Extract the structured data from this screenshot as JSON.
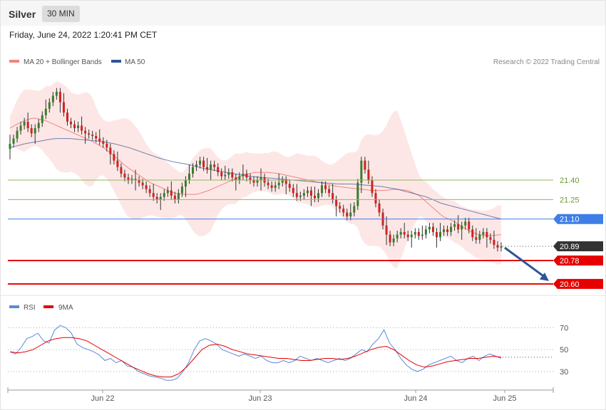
{
  "header": {
    "instrument": "Silver",
    "timeframe": "30 MIN",
    "datetime": "Friday, June 24, 2022 1:20:41 PM CET"
  },
  "price_panel": {
    "legend": [
      {
        "label": "MA 20 + Bollinger Bands",
        "color": "#f0857f"
      },
      {
        "label": "MA 50",
        "color": "#2f5597"
      }
    ],
    "credit": "Research © 2022 Trading Central",
    "levels": [
      {
        "value": "21.40",
        "style": "green-line",
        "color": "#8fba5a"
      },
      {
        "value": "21.25",
        "style": "green-line",
        "color": "#8fba5a"
      },
      {
        "value": "21.10",
        "style": "blue-tag",
        "color": "#3d7fe6"
      },
      {
        "value": "20.89",
        "style": "current-price",
        "color": "#333333"
      },
      {
        "value": "20.78",
        "style": "red-tag",
        "color": "#e60000"
      },
      {
        "value": "20.60",
        "style": "red-tag",
        "color": "#e60000"
      }
    ]
  },
  "rsi_panel": {
    "legend": [
      {
        "label": "RSI",
        "color": "#5b8ad6"
      },
      {
        "label": "9MA",
        "color": "#e60000"
      }
    ],
    "levels": [
      "70",
      "50",
      "30"
    ]
  },
  "x_axis": {
    "ticks": [
      "Jun 22",
      "Jun 23",
      "Jun 24",
      "Jun 25"
    ]
  },
  "chart_data": [
    {
      "type": "candlestick",
      "series": [
        {
          "name": "Price",
          "close": [
            21.68,
            21.72,
            21.78,
            21.82,
            21.85,
            21.8,
            21.76,
            21.8,
            21.84,
            21.9,
            21.95,
            22.0,
            22.05,
            22.08,
            22.0,
            21.92,
            21.85,
            21.83,
            21.8,
            21.82,
            21.78,
            21.76,
            21.75,
            21.74,
            21.72,
            21.7,
            21.68,
            21.65,
            21.6,
            21.55,
            21.5,
            21.45,
            21.42,
            21.4,
            21.41,
            21.4,
            21.38,
            21.36,
            21.33,
            21.3,
            21.27,
            21.25,
            21.27,
            21.3,
            21.32,
            21.28,
            21.25,
            21.3,
            21.35,
            21.4,
            21.45,
            21.5,
            21.52,
            21.55,
            21.5,
            21.48,
            21.52,
            21.5,
            21.46,
            21.43,
            21.44,
            21.46,
            21.42,
            21.4,
            21.43,
            21.45,
            21.42,
            21.4,
            21.38,
            21.4,
            21.42,
            21.38,
            21.36,
            21.34,
            21.36,
            21.38,
            21.4,
            21.37,
            21.34,
            21.3,
            21.27,
            21.28,
            21.3,
            21.32,
            21.28,
            21.26,
            21.3,
            21.36,
            21.33,
            21.3,
            21.25,
            21.2,
            21.18,
            21.15,
            21.12,
            21.15,
            21.2,
            21.38,
            21.55,
            21.48,
            21.4,
            21.3,
            21.22,
            21.15,
            21.05,
            20.98,
            20.92,
            20.95,
            20.98,
            21.0,
            20.98,
            20.96,
            20.98,
            21.0,
            20.97,
            20.98,
            21.02,
            21.04,
            21.0,
            20.96,
            21.0,
            21.02,
            21.0,
            21.04,
            21.06,
            21.02,
            21.05,
            21.08,
            21.02,
            20.96,
            20.94,
            20.98,
            21.0,
            20.96,
            20.94,
            20.9,
            20.88,
            20.89
          ]
        },
        {
          "name": "MA 20",
          "values": [
            21.8,
            21.85,
            21.88,
            21.86,
            21.82,
            21.78,
            21.74,
            21.7,
            21.65,
            21.58,
            21.5,
            21.44,
            21.38,
            21.34,
            21.3,
            21.29,
            21.29,
            21.32,
            21.36,
            21.4,
            21.44,
            21.46,
            21.46,
            21.45,
            21.43,
            21.41,
            21.39,
            21.37,
            21.35,
            21.34,
            21.33,
            21.32,
            21.32,
            21.33,
            21.32,
            21.28,
            21.2,
            21.12,
            21.08,
            21.02,
            20.98,
            20.97,
            20.98
          ]
        },
        {
          "name": "MA 50",
          "values": [
            21.65,
            21.68,
            21.7,
            21.72,
            21.72,
            21.71,
            21.7,
            21.68,
            21.65,
            21.61,
            21.57,
            21.54,
            21.52,
            21.49,
            21.47,
            21.45,
            21.43,
            21.42,
            21.41,
            21.4,
            21.39,
            21.38,
            21.37,
            21.37,
            21.36,
            21.35,
            21.33,
            21.3,
            21.27,
            21.22,
            21.19,
            21.16,
            21.13,
            21.1
          ]
        }
      ],
      "ylim": [
        20.55,
        22.25
      ],
      "levels": [
        21.4,
        21.25,
        21.1,
        20.89,
        20.78,
        20.6
      ],
      "x_ticks": [
        "Jun 22",
        "Jun 23",
        "Jun 24",
        "Jun 25"
      ],
      "annotations": [
        "arrow pointing down toward 20.60"
      ]
    },
    {
      "type": "line",
      "series": [
        {
          "name": "RSI",
          "values": [
            48,
            46,
            52,
            60,
            62,
            65,
            58,
            56,
            68,
            72,
            70,
            65,
            55,
            52,
            50,
            48,
            45,
            40,
            42,
            38,
            40,
            35,
            34,
            30,
            28,
            26,
            25,
            24,
            22,
            22,
            24,
            30,
            38,
            50,
            58,
            60,
            58,
            55,
            50,
            48,
            46,
            44,
            46,
            44,
            42,
            44,
            40,
            38,
            38,
            40,
            38,
            40,
            44,
            42,
            40,
            42,
            40,
            38,
            40,
            42,
            40,
            42,
            46,
            50,
            48,
            55,
            60,
            68,
            56,
            50,
            42,
            36,
            32,
            30,
            32,
            36,
            38,
            40,
            42,
            44,
            40,
            38,
            42,
            44,
            40,
            44,
            46,
            44,
            42
          ]
        },
        {
          "name": "9MA",
          "values": [
            48,
            47,
            48,
            50,
            54,
            58,
            60,
            61,
            61,
            60,
            58,
            54,
            50,
            46,
            42,
            38,
            34,
            31,
            28,
            26,
            25,
            25,
            28,
            34,
            42,
            50,
            54,
            55,
            53,
            50,
            48,
            46,
            45,
            44,
            43,
            42,
            42,
            41,
            40,
            40,
            41,
            42,
            42,
            41,
            42,
            44,
            47,
            50,
            52,
            53,
            50,
            45,
            40,
            36,
            34,
            35,
            37,
            39,
            40,
            41,
            42,
            42,
            43,
            44,
            43
          ]
        }
      ],
      "ylim": [
        15,
        80
      ],
      "levels": [
        70,
        50,
        30
      ]
    }
  ]
}
